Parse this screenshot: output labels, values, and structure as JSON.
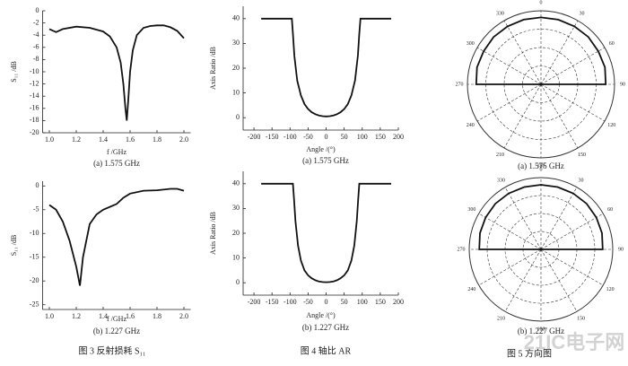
{
  "chart_data": [
    {
      "type": "line",
      "xlabel": "f /GHz",
      "ylabel": "S₁₁ /dB",
      "caption": "(a) 1.575 GHz",
      "x": [
        1.0,
        1.05,
        1.1,
        1.2,
        1.3,
        1.4,
        1.45,
        1.5,
        1.53,
        1.55,
        1.565,
        1.575,
        1.585,
        1.6,
        1.62,
        1.65,
        1.7,
        1.75,
        1.8,
        1.85,
        1.9,
        1.95,
        2.0
      ],
      "series": [
        {
          "color": "#111111",
          "values": [
            -3,
            -3.5,
            -3,
            -2.6,
            -2.8,
            -3.4,
            -4.2,
            -6,
            -8.5,
            -12,
            -16,
            -18,
            -15,
            -10,
            -6.5,
            -4,
            -2.8,
            -2.5,
            -2.4,
            -2.4,
            -2.7,
            -3.3,
            -4.5
          ]
        }
      ],
      "xlim": [
        0.95,
        2.05
      ],
      "ylim": [
        -20,
        0
      ],
      "xticks": [
        {
          "value": 1,
          "label": "1.0"
        },
        1.2,
        1.4,
        1.6,
        1.8,
        {
          "value": 2,
          "label": "2.0"
        }
      ],
      "yticks": [
        0,
        -2,
        -4,
        -6,
        -8,
        -10,
        -12,
        -14,
        -16,
        -18,
        -20
      ]
    },
    {
      "type": "line",
      "xlabel": "f /GHz",
      "ylabel": "S₁₁ /dB",
      "caption": "(b) 1.227 GHz",
      "x": [
        1.0,
        1.05,
        1.1,
        1.15,
        1.2,
        1.227,
        1.25,
        1.3,
        1.35,
        1.4,
        1.5,
        1.55,
        1.6,
        1.7,
        1.8,
        1.9,
        1.95,
        2.0
      ],
      "series": [
        {
          "color": "#111111",
          "values": [
            -4,
            -5,
            -7.5,
            -11.5,
            -17,
            -21,
            -15,
            -8,
            -6,
            -5,
            -3.8,
            -2.5,
            -1.6,
            -1,
            -0.9,
            -0.6,
            -0.6,
            -1
          ]
        }
      ],
      "xlim": [
        0.95,
        2.05
      ],
      "ylim": [
        -26,
        1
      ],
      "xticks": [
        {
          "value": 1,
          "label": "1.0"
        },
        1.2,
        1.4,
        1.6,
        1.8,
        {
          "value": 2,
          "label": "2.0"
        }
      ],
      "yticks": [
        0,
        -5,
        -10,
        -15,
        -20,
        -25
      ]
    },
    {
      "type": "line",
      "xlabel": "Angle /(°)",
      "ylabel": "Axis Ratio /dB",
      "caption": "(a) 1.575 GHz",
      "x": [
        -180,
        -95,
        -92,
        -88,
        -80,
        -70,
        -60,
        -50,
        -40,
        -30,
        -20,
        -10,
        0,
        10,
        20,
        30,
        40,
        50,
        60,
        70,
        80,
        88,
        92,
        95,
        180
      ],
      "series": [
        {
          "color": "#111111",
          "values": [
            40,
            40,
            34,
            25,
            15,
            9,
            5.5,
            3.5,
            2.2,
            1.4,
            0.9,
            0.6,
            0.5,
            0.6,
            0.9,
            1.4,
            2.2,
            3.5,
            5.5,
            9,
            15,
            25,
            34,
            40,
            40
          ]
        }
      ],
      "xlim": [
        -230,
        200
      ],
      "ylim": [
        -5,
        45
      ],
      "xticks": [
        -200,
        -150,
        -100,
        -50,
        0,
        50,
        100,
        150,
        200
      ],
      "yticks": [
        0,
        10,
        20,
        30,
        40
      ]
    },
    {
      "type": "line",
      "xlabel": "Angle /(°)",
      "ylabel": "Axis Ratio /dB",
      "caption": "(b) 1.227 GHz",
      "x": [
        -180,
        -92,
        -89,
        -85,
        -78,
        -70,
        -60,
        -50,
        -40,
        -30,
        -20,
        -10,
        0,
        10,
        20,
        30,
        40,
        50,
        60,
        70,
        78,
        85,
        89,
        92,
        180
      ],
      "series": [
        {
          "color": "#111111",
          "values": [
            40,
            40,
            34,
            25,
            15,
            9,
            5,
            3,
            1.8,
            1,
            0.5,
            0.3,
            0.2,
            0.3,
            0.5,
            1,
            1.8,
            3,
            5,
            9,
            15,
            25,
            34,
            40,
            40
          ]
        }
      ],
      "xlim": [
        -230,
        200
      ],
      "ylim": [
        -5,
        45
      ],
      "xticks": [
        -200,
        -150,
        -100,
        -50,
        0,
        50,
        100,
        150,
        200
      ],
      "yticks": [
        0,
        10,
        20,
        30,
        40
      ]
    },
    {
      "type": "polar",
      "caption": "(a) 1.575 GHz",
      "theta": [
        270,
        285,
        300,
        315,
        330,
        345,
        0,
        15,
        30,
        45,
        60,
        75,
        90
      ],
      "series": [
        {
          "color": "#111111",
          "values": [
            0.88,
            0.9,
            0.9,
            0.91,
            0.91,
            0.91,
            0.91,
            0.91,
            0.91,
            0.91,
            0.9,
            0.9,
            0.88
          ]
        }
      ],
      "rlim": [
        0,
        1
      ],
      "rticks": [
        0.25,
        0.5,
        0.75,
        1
      ],
      "thetaticks": [
        0,
        30,
        60,
        90,
        120,
        150,
        180,
        210,
        240,
        270,
        300,
        330
      ]
    },
    {
      "type": "polar",
      "caption": "(b) 1.227 GHz",
      "theta": [
        270,
        285,
        300,
        315,
        330,
        345,
        0,
        15,
        30,
        45,
        60,
        75,
        90
      ],
      "series": [
        {
          "color": "#111111",
          "values": [
            0.86,
            0.88,
            0.89,
            0.9,
            0.9,
            0.9,
            0.9,
            0.9,
            0.9,
            0.9,
            0.89,
            0.88,
            0.86
          ]
        }
      ],
      "rlim": [
        0,
        1
      ],
      "rticks": [
        0.25,
        0.5,
        0.75,
        1
      ],
      "thetaticks": [
        0,
        30,
        60,
        90,
        120,
        150,
        180,
        210,
        240,
        270,
        300,
        330
      ]
    }
  ],
  "figures": [
    "图 3   反射损耗 S₁₁",
    "图 4    轴比 AR",
    "图 5    方向图"
  ],
  "watermark": "21IC电子网"
}
